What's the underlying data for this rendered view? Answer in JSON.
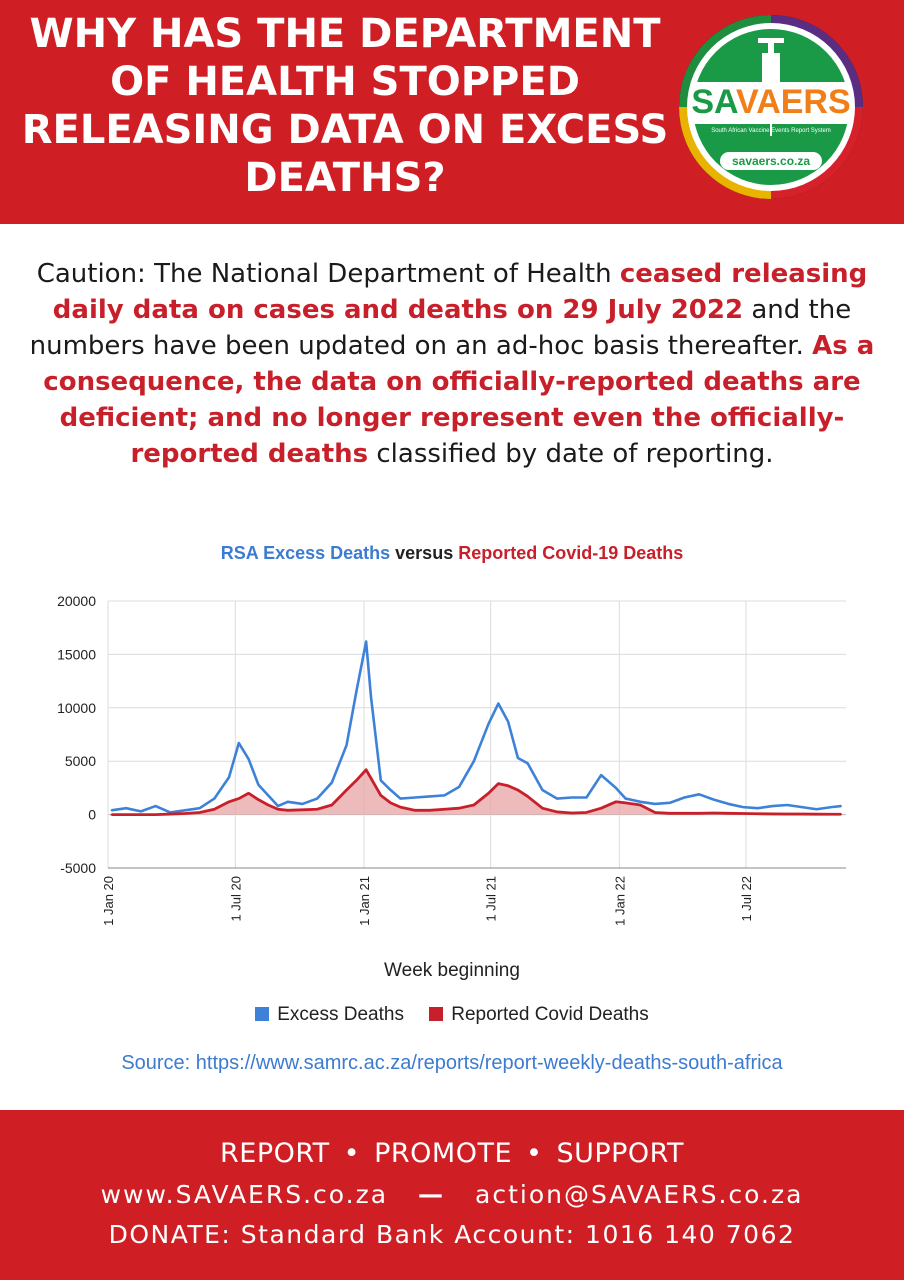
{
  "header": {
    "title": "WHY HAS THE DEPARTMENT OF HEALTH STOPPED RELEASING DATA ON EXCESS DEATHS?"
  },
  "logo": {
    "name": "SAVAERS",
    "name_part1": "SA",
    "name_part2": "VAERS",
    "subtitle": "South African Vaccine Events Report System",
    "url": "savaers.co.za",
    "icon": "syringe-icon",
    "colors": {
      "ring_green": "#1e8e3e",
      "ring_gold": "#e8b400",
      "ring_red": "#d6212b",
      "ring_purple": "#5a2d82",
      "ring_black": "#111111",
      "orange": "#f07f1a",
      "green": "#1a9a46"
    }
  },
  "caution": {
    "text1": "Caution: The National Department of Health ",
    "highlight1": "ceased releasing daily data on cases and deaths on 29 July 2022",
    "text2": " and the numbers have been updated on an ad-hoc basis thereafter. ",
    "highlight2": "As a consequence, the data on officially-reported deaths are deficient; and no longer represent even the officially-reported deaths",
    "text3": " classified by date of reporting."
  },
  "chart_title": {
    "part1": "RSA Excess Deaths",
    "part2": " versus ",
    "part3": "Reported Covid-19 Deaths"
  },
  "chart_data": {
    "type": "area",
    "x": [
      "2020-01-06",
      "2020-01-27",
      "2020-02-17",
      "2020-03-09",
      "2020-03-30",
      "2020-04-20",
      "2020-05-11",
      "2020-06-01",
      "2020-06-22",
      "2020-07-06",
      "2020-07-20",
      "2020-08-03",
      "2020-08-17",
      "2020-08-31",
      "2020-09-14",
      "2020-10-05",
      "2020-10-26",
      "2020-11-16",
      "2020-12-07",
      "2020-12-21",
      "2021-01-04",
      "2021-01-11",
      "2021-01-25",
      "2021-02-08",
      "2021-02-22",
      "2021-03-15",
      "2021-04-05",
      "2021-04-26",
      "2021-05-17",
      "2021-06-07",
      "2021-06-28",
      "2021-07-12",
      "2021-07-26",
      "2021-08-09",
      "2021-08-23",
      "2021-09-13",
      "2021-10-04",
      "2021-10-25",
      "2021-11-15",
      "2021-12-06",
      "2021-12-27",
      "2022-01-10",
      "2022-01-31",
      "2022-02-21",
      "2022-03-14",
      "2022-04-04",
      "2022-04-25",
      "2022-05-16",
      "2022-06-06",
      "2022-06-27",
      "2022-07-18",
      "2022-08-08",
      "2022-08-29",
      "2022-09-19",
      "2022-10-10",
      "2022-10-31",
      "2022-11-14"
    ],
    "xlabel": "Week beginning",
    "ylabel": "",
    "ylim": [
      -5000,
      20000
    ],
    "yticks": [
      -5000,
      0,
      5000,
      10000,
      15000,
      20000
    ],
    "xticks": [
      {
        "date": "2020-01-01",
        "label": "1 Jan 20"
      },
      {
        "date": "2020-07-01",
        "label": "1 Jul 20"
      },
      {
        "date": "2021-01-01",
        "label": "1 Jan 21"
      },
      {
        "date": "2021-07-01",
        "label": "1 Jul 21"
      },
      {
        "date": "2022-01-01",
        "label": "1 Jan 22"
      },
      {
        "date": "2022-07-01",
        "label": "1 Jul 22"
      }
    ],
    "grid": true,
    "legend_position": "bottom",
    "series": [
      {
        "name": "Excess Deaths",
        "color": "#3d82d8",
        "values": [
          400,
          600,
          300,
          800,
          200,
          400,
          600,
          1500,
          3500,
          6700,
          5200,
          2800,
          1800,
          800,
          1200,
          1000,
          1500,
          3000,
          6500,
          11500,
          16200,
          11000,
          3200,
          2300,
          1500,
          1600,
          1700,
          1800,
          2600,
          5000,
          8500,
          10400,
          8700,
          5300,
          4800,
          2300,
          1500,
          1600,
          1600,
          3700,
          2500,
          1500,
          1200,
          1000,
          1100,
          1600,
          1900,
          1400,
          1000,
          700,
          600,
          800,
          900,
          700,
          500,
          700,
          800
        ]
      },
      {
        "name": "Reported Covid Deaths",
        "color": "#c8202a",
        "values": [
          0,
          0,
          0,
          0,
          50,
          100,
          200,
          500,
          1200,
          1500,
          2000,
          1400,
          900,
          500,
          400,
          450,
          500,
          900,
          2300,
          3200,
          4200,
          3400,
          1800,
          1100,
          700,
          400,
          400,
          500,
          600,
          900,
          2000,
          2900,
          2700,
          2300,
          1700,
          600,
          250,
          150,
          200,
          600,
          1200,
          1100,
          900,
          200,
          120,
          120,
          120,
          150,
          120,
          100,
          80,
          60,
          50,
          50,
          40,
          30,
          30
        ]
      }
    ]
  },
  "source": "Source: https://www.samrc.ac.za/reports/report-weekly-deaths-south-africa",
  "footer": {
    "line1": [
      "REPORT",
      "PROMOTE",
      "SUPPORT"
    ],
    "separator": "•",
    "website": "www.SAVAERS.co.za",
    "dash": "—",
    "email": "action@SAVAERS.co.za",
    "donate": "DONATE: Standard Bank Account: 1016 140 7062"
  }
}
